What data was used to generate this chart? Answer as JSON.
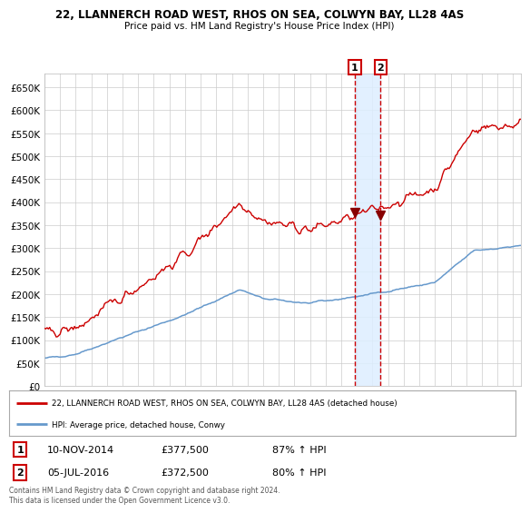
{
  "title": "22, LLANNERCH ROAD WEST, RHOS ON SEA, COLWYN BAY, LL28 4AS",
  "subtitle": "Price paid vs. HM Land Registry's House Price Index (HPI)",
  "legend_line1": "22, LLANNERCH ROAD WEST, RHOS ON SEA, COLWYN BAY, LL28 4AS (detached house)",
  "legend_line2": "HPI: Average price, detached house, Conwy",
  "transaction1_date": "10-NOV-2014",
  "transaction1_price": 377500,
  "transaction1_label": "87% ↑ HPI",
  "transaction2_date": "05-JUL-2016",
  "transaction2_price": 372500,
  "transaction2_label": "80% ↑ HPI",
  "footer": "Contains HM Land Registry data © Crown copyright and database right 2024.\nThis data is licensed under the Open Government Licence v3.0.",
  "hpi_color": "#6699cc",
  "price_color": "#cc0000",
  "marker_color": "#880000",
  "vline_color": "#cc0000",
  "vband_color": "#ddeeff",
  "background_color": "#ffffff",
  "grid_color": "#cccccc",
  "ylim": [
    0,
    680000
  ],
  "yticks": [
    0,
    50000,
    100000,
    150000,
    200000,
    250000,
    300000,
    350000,
    400000,
    450000,
    500000,
    550000,
    600000,
    650000
  ],
  "xlim_start": 1995,
  "xlim_end": 2025.5,
  "transaction1_x": 2014.86,
  "transaction2_x": 2016.51
}
